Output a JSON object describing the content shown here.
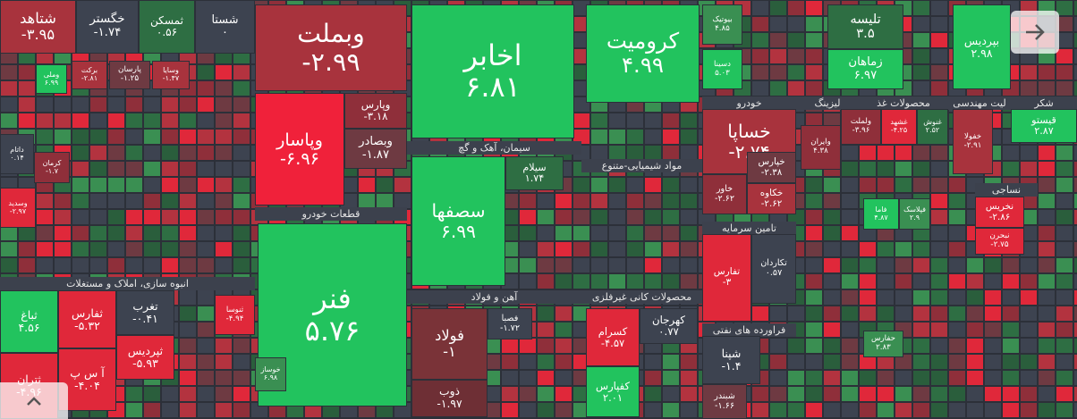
{
  "sectors": [
    "انبوه سازی، املاک و مستغلات",
    "قطعات خودرو",
    "سیمان، آهک و گچ",
    "آهن و فولاد",
    "مواد شیمیایی-متنوع",
    "محصولات کانی غیرفلزی",
    "خودرو",
    "تامین سرمایه",
    "فراورده های نفتی",
    "لیزینگ",
    "محصولات غذ",
    "لیت مهندسی",
    "شکر",
    "نساجی"
  ],
  "tiles": [
    {
      "name": "شستا",
      "value": "۰"
    },
    {
      "name": "ثمسکن",
      "value": "۰.۵۶"
    },
    {
      "name": "خگستر",
      "value": "-۱.۷۴"
    },
    {
      "name": "شتاهد",
      "value": "-۳.۹۵"
    },
    {
      "name": "وملی",
      "value": "۶.۹۹"
    },
    {
      "name": "برکت",
      "value": "-۲.۸۱"
    },
    {
      "name": "پارسان",
      "value": "-۱.۲۵"
    },
    {
      "name": "وسایا",
      "value": "-۱.۴۷"
    },
    {
      "name": "داتام",
      "value": "۰.۱۴"
    },
    {
      "name": "کرمان",
      "value": "-۱.۷"
    },
    {
      "name": "وسدید",
      "value": "-۲.۹۷"
    },
    {
      "name": "ثباغ",
      "value": "۴.۵۶"
    },
    {
      "name": "ثفارس",
      "value": "-۵.۳۲"
    },
    {
      "name": "تغرب",
      "value": "-۰.۴۱"
    },
    {
      "name": "آ س پ",
      "value": "-۴.۰۴"
    },
    {
      "name": "ثپردیس",
      "value": "-۵.۹۳"
    },
    {
      "name": "ثتران",
      "value": "-۴.۹۶"
    },
    {
      "name": "ثنوسا",
      "value": "-۴.۹۴"
    },
    {
      "name": "وبملت",
      "value": "-۲.۹۹"
    },
    {
      "name": "وپاسار",
      "value": "-۶.۹۶"
    },
    {
      "name": "وپارس",
      "value": "-۳.۱۸"
    },
    {
      "name": "وبصادر",
      "value": "-۱.۸۷"
    },
    {
      "name": "فنر",
      "value": "۵.۷۶"
    },
    {
      "name": "خوساز",
      "value": "۶.۹۸"
    },
    {
      "name": "اخابر",
      "value": "۶.۸۱"
    },
    {
      "name": "سصفها",
      "value": "۶.۹۹"
    },
    {
      "name": "سیلام",
      "value": "۱.۷۴"
    },
    {
      "name": "فولاد",
      "value": "-۱"
    },
    {
      "name": "ذوب",
      "value": "-۱.۹۷"
    },
    {
      "name": "فصبا",
      "value": "-۱.۷۲"
    },
    {
      "name": "کرومیت",
      "value": "۴.۹۹"
    },
    {
      "name": "کسرام",
      "value": "-۴.۵۷"
    },
    {
      "name": "کهرجان",
      "value": "۰.۷۷"
    },
    {
      "name": "کفپارس",
      "value": "۲.۰۱"
    },
    {
      "name": "بیوتیک",
      "value": "۴.۸۵"
    },
    {
      "name": "دسینا",
      "value": "۵.۰۳"
    },
    {
      "name": "خساپا",
      "value": "-۲.۷۴"
    },
    {
      "name": "خاور",
      "value": "-۲.۶۲"
    },
    {
      "name": "خکاوه",
      "value": "-۲.۶۲"
    },
    {
      "name": "خپارس",
      "value": "-۲.۳۸"
    },
    {
      "name": "تفارس",
      "value": "-۳"
    },
    {
      "name": "تکاردان",
      "value": "۰.۵۷"
    },
    {
      "name": "شپنا",
      "value": "-۱.۴"
    },
    {
      "name": "شبندر",
      "value": "-۱.۶۶"
    },
    {
      "name": "تلیسه",
      "value": "۳.۵"
    },
    {
      "name": "زماهان",
      "value": "۶.۹۷"
    },
    {
      "name": "ولملت",
      "value": "-۳.۹۶"
    },
    {
      "name": "وایران",
      "value": "۴.۳۸"
    },
    {
      "name": "غشهد",
      "value": "-۴.۲۵"
    },
    {
      "name": "غنوش",
      "value": "۲.۵۲"
    },
    {
      "name": "خفولا",
      "value": "-۲.۹۱"
    },
    {
      "name": "بپردیس",
      "value": "۲.۹۸"
    },
    {
      "name": "قیستو",
      "value": "۲.۸۷"
    },
    {
      "name": "فاما",
      "value": "۴.۸۷"
    },
    {
      "name": "فپلاسک",
      "value": "۲.۹"
    },
    {
      "name": "نخریس",
      "value": "-۲.۸۶"
    },
    {
      "name": "نبحرن",
      "value": "-۲.۷۵"
    },
    {
      "name": "حفارس",
      "value": "۲.۸۳"
    }
  ]
}
